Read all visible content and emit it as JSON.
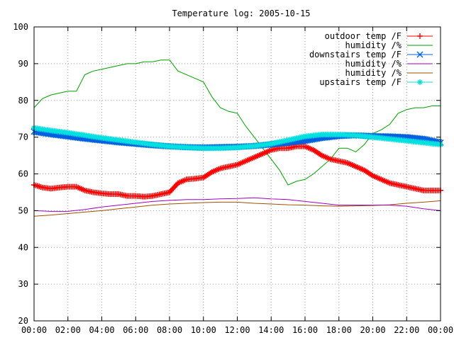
{
  "chart_data": {
    "type": "line",
    "title": "Temperature log: 2005-10-15",
    "xlabel": "",
    "ylabel": "",
    "xlim": [
      0,
      24
    ],
    "ylim": [
      20,
      100
    ],
    "grid": true,
    "legend_position": "top-right",
    "x_tick_labels": [
      "00:00",
      "02:00",
      "04:00",
      "06:00",
      "08:00",
      "10:00",
      "12:00",
      "14:00",
      "16:00",
      "18:00",
      "20:00",
      "22:00",
      "00:00"
    ],
    "x_tick_values": [
      0,
      2,
      4,
      6,
      8,
      10,
      12,
      14,
      16,
      18,
      20,
      22,
      24
    ],
    "y_ticks": [
      20,
      30,
      40,
      50,
      60,
      70,
      80,
      90,
      100
    ],
    "series": [
      {
        "name": "outdoor temp /F",
        "color": "#ff0000",
        "marker": "plus",
        "x": [
          0,
          0.5,
          1,
          1.5,
          2,
          2.5,
          3,
          3.5,
          4,
          4.5,
          5,
          5.5,
          6,
          6.5,
          7,
          7.5,
          8,
          8.5,
          9,
          9.5,
          10,
          10.5,
          11,
          11.5,
          12,
          12.5,
          13,
          13.5,
          14,
          14.5,
          15,
          15.5,
          16,
          16.5,
          17,
          17.5,
          18,
          18.5,
          19,
          19.5,
          20,
          20.5,
          21,
          21.5,
          22,
          22.5,
          23,
          23.5,
          24
        ],
        "y": [
          57,
          56.3,
          56,
          56.3,
          56.5,
          56.5,
          55.5,
          55,
          54.7,
          54.5,
          54.5,
          54,
          54,
          53.8,
          54,
          54.5,
          55,
          57.5,
          58.5,
          58.7,
          59,
          60.5,
          61.5,
          62,
          62.5,
          63.5,
          64.5,
          65.5,
          66.5,
          67,
          67,
          67.5,
          67.5,
          66.5,
          65,
          64,
          63.5,
          63,
          62,
          61,
          59.5,
          58.5,
          57.5,
          57,
          56.5,
          56,
          55.5,
          55.5,
          55.5
        ]
      },
      {
        "name": "humidity /%",
        "color": "#00a000",
        "marker": "none",
        "x": [
          0,
          0.5,
          1,
          1.5,
          2,
          2.5,
          3,
          3.5,
          4,
          4.5,
          5,
          5.5,
          6,
          6.5,
          7,
          7.5,
          8,
          8.5,
          9,
          9.5,
          10,
          10.5,
          11,
          11.5,
          12,
          12.5,
          13,
          13.5,
          14,
          14.5,
          15,
          15.5,
          16,
          16.5,
          17,
          17.5,
          18,
          18.5,
          19,
          19.5,
          20,
          20.5,
          21,
          21.5,
          22,
          22.5,
          23,
          23.5,
          24
        ],
        "y": [
          78,
          80.5,
          81.5,
          82,
          82.5,
          82.5,
          87,
          88,
          88.5,
          89,
          89.5,
          90,
          90,
          90.5,
          90.5,
          91,
          91,
          88,
          87,
          86,
          85,
          81,
          78,
          77,
          76.5,
          73,
          70,
          67,
          64,
          61,
          57,
          58,
          58.5,
          60,
          62,
          64,
          67,
          67,
          66,
          68,
          71,
          72,
          73.5,
          76.5,
          77.5,
          78,
          78,
          78.5,
          78.5
        ]
      },
      {
        "name": "downstairs temp /F",
        "color": "#0060e0",
        "marker": "x",
        "x": [
          0,
          1,
          2,
          3,
          4,
          5,
          6,
          7,
          8,
          9,
          10,
          11,
          12,
          13,
          14,
          15,
          16,
          17,
          18,
          19,
          20,
          21,
          22,
          23,
          24
        ],
        "y": [
          71.5,
          70.8,
          70.2,
          69.6,
          69.1,
          68.6,
          68.2,
          67.8,
          67.5,
          67.3,
          67.2,
          67.3,
          67.4,
          67.6,
          68,
          68.5,
          69,
          69.8,
          70.3,
          70.5,
          70.3,
          70.2,
          70,
          69.5,
          68.5
        ]
      },
      {
        "name": "humidity /%",
        "color": "#a000c0",
        "marker": "none",
        "x": [
          0,
          1,
          2,
          3,
          4,
          5,
          6,
          7,
          8,
          9,
          10,
          11,
          12,
          13,
          14,
          15,
          16,
          17,
          18,
          19,
          20,
          21,
          22,
          23,
          24
        ],
        "y": [
          50,
          49.8,
          49.8,
          50.3,
          51,
          51.5,
          52,
          52.5,
          52.8,
          53,
          53,
          53.2,
          53.3,
          53.5,
          53.2,
          53,
          52.5,
          52,
          51.5,
          51.5,
          51.5,
          51.5,
          51.2,
          50.5,
          50
        ]
      },
      {
        "name": "humidity /%",
        "color": "#a05000",
        "marker": "none",
        "x": [
          0,
          1,
          2,
          3,
          4,
          5,
          6,
          7,
          8,
          9,
          10,
          11,
          12,
          13,
          14,
          15,
          16,
          17,
          18,
          19,
          20,
          21,
          22,
          23,
          24
        ],
        "y": [
          48.5,
          48.8,
          49.2,
          49.6,
          50,
          50.5,
          51,
          51.5,
          51.8,
          52,
          52.2,
          52.3,
          52.3,
          52,
          51.8,
          51.6,
          51.5,
          51.3,
          51.2,
          51.3,
          51.4,
          51.6,
          52,
          52.3,
          52.7
        ]
      },
      {
        "name": "upstairs temp /F",
        "color": "#00e0e0",
        "marker": "star",
        "x": [
          0,
          1,
          2,
          3,
          4,
          5,
          6,
          7,
          8,
          9,
          10,
          11,
          12,
          13,
          14,
          15,
          16,
          17,
          18,
          19,
          20,
          21,
          22,
          23,
          24
        ],
        "y": [
          72.5,
          71.8,
          71.2,
          70.5,
          69.8,
          69.2,
          68.6,
          68,
          67.5,
          67.2,
          67,
          67,
          67.2,
          67.6,
          68.2,
          69.2,
          70.2,
          70.7,
          70.7,
          70.5,
          70,
          69.5,
          69,
          68.5,
          68
        ]
      }
    ]
  }
}
